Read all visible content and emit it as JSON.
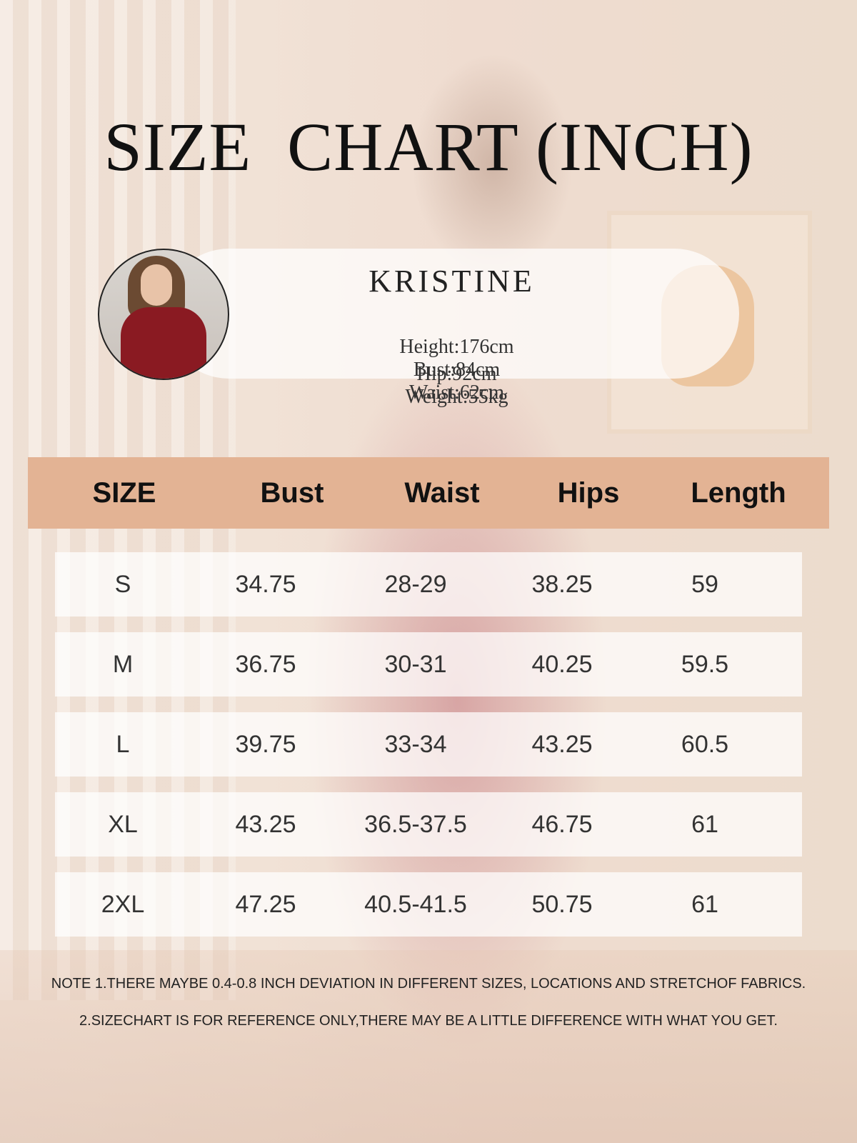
{
  "title": "SIZE  CHART (INCH)",
  "model": {
    "name": "KRISTINE",
    "stats_line1": [
      "Height:176cm",
      "Bust:84cm",
      "Waist:62cm"
    ],
    "stats_line2": [
      "Hip:92cm",
      "Weight:55kg"
    ]
  },
  "table": {
    "headers": [
      "SIZE",
      "Bust",
      "Waist",
      "Hips",
      "Length"
    ],
    "rows": [
      [
        "S",
        "34.75",
        "28-29",
        "38.25",
        "59"
      ],
      [
        "M",
        "36.75",
        "30-31",
        "40.25",
        "59.5"
      ],
      [
        "L",
        "39.75",
        "33-34",
        "43.25",
        "60.5"
      ],
      [
        "XL",
        "43.25",
        "36.5-37.5",
        "46.75",
        "61"
      ],
      [
        "2XL",
        "47.25",
        "40.5-41.5",
        "50.75",
        "61"
      ]
    ]
  },
  "notes": [
    "NOTE 1.THERE MAYBE 0.4-0.8 INCH DEVIATION IN DIFFERENT SIZES, LOCATIONS AND STRETCHOF FABRICS.",
    "2.SIZECHART IS FOR REFERENCE ONLY,THERE MAY BE A  LITTLE DIFFERENCE WITH WHAT YOU GET."
  ],
  "colors": {
    "header_band": "#e3b394",
    "dress": "#8a1a22"
  }
}
